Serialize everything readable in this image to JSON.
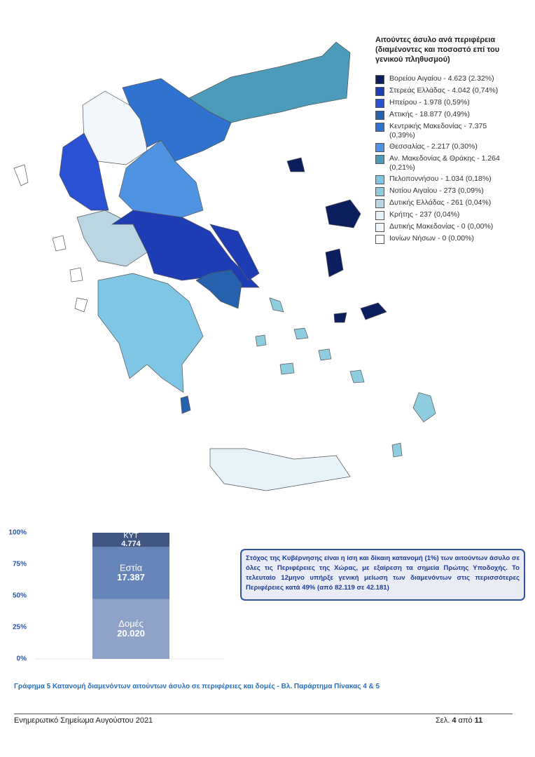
{
  "map": {
    "title": "Αιτούντες άσυλο ανά περιφέρεια (διαμένοντες και ποσοστό επί του γενικού πληθυσμού)",
    "legend": [
      {
        "label": "Βορείου Αιγαίου - 4.623 (2.32%)",
        "color": "#0b1f5e"
      },
      {
        "label": "Στερεάς Ελλάδας - 4.042 (0,74%)",
        "color": "#1e3db5"
      },
      {
        "label": "Ηπείρου - 1.978 (0,59%)",
        "color": "#2a50d4"
      },
      {
        "label": "Αττικής - 18.877 (0,49%)",
        "color": "#2561ad"
      },
      {
        "label": "Κεντρικής Μακεδονίας - 7.375 (0,39%)",
        "color": "#2f72d0"
      },
      {
        "label": "Θεσσαλίας - 2.217 (0,30%)",
        "color": "#4f93e3"
      },
      {
        "label": "Αν. Μακεδονίας & Θράκης - 1.264 (0,21%)",
        "color": "#4a9cba"
      },
      {
        "label": "Πελοποννήσου - 1.034 (0,18%)",
        "color": "#7ec6e3"
      },
      {
        "label": "Νοτίου Αιγαίου - 273 (0,09%)",
        "color": "#8ecde0"
      },
      {
        "label": "Δυτικής Ελλάδας - 261 (0,04%)",
        "color": "#b9d6e2"
      },
      {
        "label": "Κρήτης - 237 (0,04%)",
        "color": "#e6f3f8"
      },
      {
        "label": "Δυτικής Μακεδονίας - 0 (0,00%)",
        "color": "#f2f7fc"
      },
      {
        "label": "Ιονίων Νήσων - 0 (0,00%)",
        "color": "#ffffff"
      }
    ]
  },
  "chart_data": {
    "type": "bar",
    "stacked": "percent",
    "series": [
      {
        "name": "Δομές",
        "color": "#8fa3c8",
        "values": [
          20020
        ],
        "value_labels": [
          "20.020"
        ]
      },
      {
        "name": "Εστία",
        "color": "#6686b9",
        "values": [
          17387
        ],
        "value_labels": [
          "17.387"
        ]
      },
      {
        "name": "ΚΥΤ",
        "color": "#3f5781",
        "values": [
          4774
        ],
        "value_labels": [
          "4.774"
        ]
      }
    ],
    "ylim": [
      0,
      100
    ],
    "yticks": [
      {
        "value": 0,
        "label": "0%"
      },
      {
        "value": 25,
        "label": "25%"
      },
      {
        "value": 50,
        "label": "50%"
      },
      {
        "value": 75,
        "label": "75%"
      },
      {
        "value": 100,
        "label": "100%"
      }
    ]
  },
  "note": "Στόχος της Κυβέρνησης είναι η ίση και δίκαιη κατανομή (1%) των αιτούντων άσυλο σε όλες τις Περιφέρειες της Χώρας, με εξαίρεση τα σημεία Πρώτης Υποδοχής. Το τελευταίο 12μηνο υπήρξε γενική μείωση των διαμενόντων στις περισσότερες Περιφέρειες κατά 49% (από 82.119 σε 42.181)",
  "caption": "Γράφημα 5 Κατανομή διαμενόντων αιτούντων άσυλο σε περιφέρειες και δομές - Βλ. Παράρτημα Πίνακας 4 & 5",
  "footer": {
    "left": "Ενημερωτικό Σημείωμα Αυγούστου 2021",
    "page_prefix": "Σελ.",
    "page": "4",
    "of": "από",
    "total": "11"
  }
}
